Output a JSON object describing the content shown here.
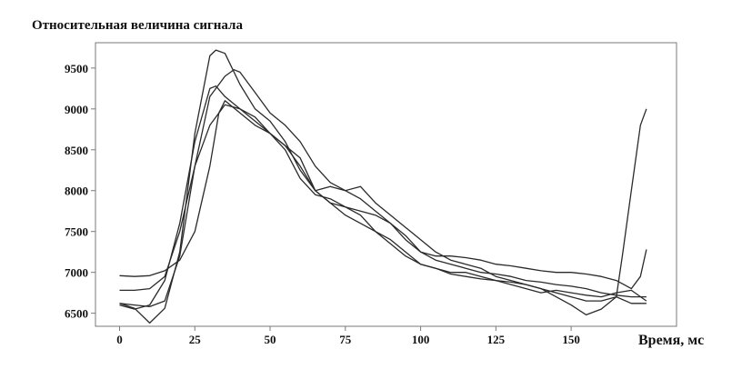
{
  "chart_data": {
    "type": "line",
    "title": "Относительная величина сигнала",
    "xlabel": "Время, мс",
    "ylabel": "",
    "xlim": [
      -8,
      185
    ],
    "ylim": [
      6340,
      9810
    ],
    "x_ticks": [
      0,
      25,
      50,
      75,
      100,
      125,
      150
    ],
    "y_ticks": [
      6500,
      7000,
      7500,
      8000,
      8500,
      9000,
      9500
    ],
    "x_tick_labels": [
      "0",
      "25",
      "50",
      "75",
      "100",
      "125",
      "150"
    ],
    "y_tick_labels": [
      "6500",
      "7000",
      "7500",
      "8000",
      "8500",
      "9000",
      "9500"
    ],
    "grid": false,
    "legend": "none",
    "line_color": "#2a2a2a",
    "series": [
      {
        "x": [
          0,
          5,
          10,
          15,
          20,
          25,
          30,
          32,
          35,
          40,
          45,
          50,
          55,
          60,
          65,
          70,
          75,
          80,
          85,
          90,
          95,
          100,
          105,
          110,
          115,
          120,
          125,
          130,
          135,
          140,
          145,
          150,
          155,
          160,
          165,
          170,
          175
        ],
        "values": [
          6620,
          6560,
          6380,
          6560,
          7250,
          8700,
          9650,
          9720,
          9680,
          9300,
          9000,
          8850,
          8600,
          8250,
          8000,
          8050,
          8000,
          7900,
          7750,
          7600,
          7400,
          7250,
          7150,
          7100,
          7050,
          7000,
          6980,
          6950,
          6900,
          6880,
          6850,
          6830,
          6800,
          6750,
          6720,
          6700,
          6700
        ]
      },
      {
        "x": [
          0,
          5,
          10,
          15,
          20,
          25,
          30,
          35,
          38,
          40,
          45,
          50,
          55,
          60,
          65,
          70,
          75,
          80,
          85,
          90,
          95,
          100,
          105,
          110,
          115,
          120,
          125,
          130,
          135,
          140,
          145,
          150,
          155,
          160,
          165,
          170,
          175
        ],
        "values": [
          6620,
          6600,
          6580,
          6650,
          7200,
          8300,
          9150,
          9400,
          9480,
          9450,
          9200,
          8950,
          8800,
          8600,
          8300,
          8100,
          8000,
          8050,
          7850,
          7700,
          7550,
          7400,
          7250,
          7150,
          7100,
          7050,
          6950,
          6900,
          6850,
          6800,
          6700,
          6600,
          6480,
          6550,
          6700,
          6620,
          6620
        ]
      },
      {
        "x": [
          0,
          5,
          10,
          15,
          20,
          25,
          30,
          33,
          35,
          40,
          45,
          50,
          55,
          60,
          65,
          70,
          75,
          80,
          85,
          90,
          95,
          100,
          105,
          110,
          115,
          120,
          125,
          130,
          135,
          140,
          145,
          150,
          155,
          160,
          165,
          167,
          170,
          173,
          175
        ],
        "values": [
          6960,
          6950,
          6960,
          7020,
          7150,
          7500,
          8300,
          8950,
          9100,
          8950,
          8800,
          8700,
          8550,
          8400,
          8000,
          7850,
          7700,
          7600,
          7500,
          7400,
          7250,
          7100,
          7050,
          6980,
          6950,
          6920,
          6900,
          6880,
          6850,
          6800,
          6750,
          6700,
          6650,
          6650,
          6700,
          7200,
          8000,
          8800,
          9000
        ]
      },
      {
        "x": [
          0,
          5,
          10,
          15,
          20,
          25,
          30,
          35,
          40,
          45,
          50,
          55,
          60,
          65,
          70,
          75,
          80,
          85,
          90,
          95,
          100,
          105,
          110,
          115,
          120,
          125,
          130,
          135,
          140,
          145,
          150,
          155,
          160,
          165,
          170,
          173,
          175
        ],
        "values": [
          6780,
          6780,
          6800,
          6950,
          7500,
          8300,
          8800,
          9050,
          9000,
          8850,
          8700,
          8550,
          8300,
          8000,
          7850,
          7800,
          7750,
          7700,
          7600,
          7450,
          7250,
          7200,
          7200,
          7180,
          7150,
          7100,
          7080,
          7050,
          7020,
          7000,
          7000,
          6980,
          6950,
          6900,
          6800,
          6950,
          7280
        ]
      },
      {
        "x": [
          0,
          5,
          10,
          15,
          20,
          25,
          30,
          32,
          35,
          40,
          45,
          50,
          55,
          60,
          65,
          70,
          75,
          80,
          85,
          90,
          95,
          100,
          105,
          110,
          115,
          120,
          125,
          130,
          135,
          140,
          145,
          150,
          155,
          160,
          165,
          170,
          175
        ],
        "values": [
          6600,
          6550,
          6600,
          6900,
          7600,
          8600,
          9250,
          9280,
          9150,
          9000,
          8900,
          8700,
          8500,
          8150,
          7950,
          7900,
          7800,
          7700,
          7500,
          7350,
          7200,
          7100,
          7050,
          7000,
          7000,
          6950,
          6900,
          6850,
          6800,
          6750,
          6780,
          6750,
          6720,
          6700,
          6750,
          6780,
          6650
        ]
      }
    ]
  }
}
